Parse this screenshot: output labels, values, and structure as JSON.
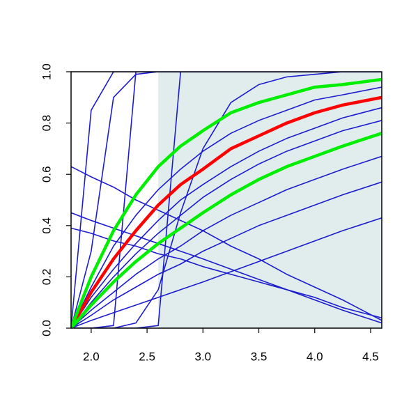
{
  "chart_data": {
    "type": "line",
    "x": [
      1.82,
      2.0,
      2.2,
      2.4,
      2.6,
      2.8,
      3.0,
      3.25,
      3.5,
      3.75,
      4.0,
      4.25,
      4.6
    ],
    "xlim": [
      1.82,
      4.6
    ],
    "ylim": [
      0,
      1
    ],
    "xticks": [
      {
        "value": 2,
        "label": "2.0"
      },
      2.5,
      {
        "value": 3,
        "label": "3.0"
      },
      3.5,
      {
        "value": 4,
        "label": "4.0"
      },
      4.5
    ],
    "yticks": [
      {
        "value": 0,
        "label": "0.0"
      },
      0.2,
      0.4,
      0.6,
      0.8,
      {
        "value": 1,
        "label": "1.0"
      }
    ],
    "shade_xlim": [
      2.6,
      4.6
    ],
    "shade_color": "#e1ecec",
    "series": [
      {
        "color": "#1c1ccf",
        "width": 1.6,
        "values": [
          0,
          0.05,
          0.11,
          0.16,
          0.21,
          0.25,
          0.3,
          0.35,
          0.4,
          0.44,
          0.48,
          0.52,
          0.57
        ]
      },
      {
        "color": "#1c1ccf",
        "width": 1.6,
        "values": [
          0,
          0.07,
          0.14,
          0.21,
          0.27,
          0.32,
          0.38,
          0.44,
          0.49,
          0.54,
          0.58,
          0.62,
          0.67
        ]
      },
      {
        "color": "#1c1ccf",
        "width": 1.6,
        "values": [
          0,
          0.1,
          0.2,
          0.29,
          0.37,
          0.44,
          0.51,
          0.58,
          0.64,
          0.69,
          0.73,
          0.77,
          0.81
        ]
      },
      {
        "color": "#1c1ccf",
        "width": 1.6,
        "values": [
          0,
          0.12,
          0.23,
          0.33,
          0.42,
          0.5,
          0.56,
          0.63,
          0.69,
          0.74,
          0.78,
          0.82,
          0.86
        ]
      },
      {
        "color": "#1c1ccf",
        "width": 1.6,
        "values": [
          0,
          0.16,
          0.32,
          0.44,
          0.54,
          0.62,
          0.69,
          0.76,
          0.81,
          0.85,
          0.89,
          0.91,
          0.94
        ]
      },
      {
        "color": "#1c1ccf",
        "width": 1.6,
        "values": [
          0,
          0.03,
          0.06,
          0.09,
          0.12,
          0.15,
          0.18,
          0.22,
          0.26,
          0.3,
          0.34,
          0.38,
          0.43
        ]
      },
      {
        "color": "#1c1ccf",
        "width": 1.6,
        "values": [
          0,
          0.85,
          1,
          1,
          1,
          1,
          1,
          1,
          1,
          1,
          1,
          1,
          1
        ]
      },
      {
        "color": "#1c1ccf",
        "width": 1.6,
        "values": [
          0,
          0.3,
          0.9,
          0.99,
          1,
          1,
          1,
          1,
          1,
          1,
          1,
          1,
          1
        ]
      },
      {
        "color": "#1c1ccf",
        "width": 1.6,
        "values": [
          0,
          0,
          0.01,
          1,
          1,
          1,
          1,
          1,
          1,
          1,
          1,
          1,
          1
        ]
      },
      {
        "color": "#1c1ccf",
        "width": 1.6,
        "values": [
          0,
          0,
          0,
          0,
          0.01,
          1,
          1,
          1,
          1,
          1,
          1,
          1,
          1
        ]
      },
      {
        "color": "#1c1ccf",
        "width": 1.6,
        "values": [
          0,
          0,
          0,
          0.02,
          0.15,
          0.45,
          0.7,
          0.88,
          0.95,
          0.98,
          0.99,
          1,
          1
        ]
      },
      {
        "color": "#1c1ccf",
        "width": 1.6,
        "values": [
          0.63,
          0.59,
          0.55,
          0.5,
          0.46,
          0.42,
          0.38,
          0.32,
          0.27,
          0.21,
          0.16,
          0.11,
          0.03
        ]
      },
      {
        "color": "#1c1ccf",
        "width": 1.6,
        "values": [
          0.45,
          0.42,
          0.39,
          0.36,
          0.33,
          0.3,
          0.27,
          0.23,
          0.19,
          0.15,
          0.11,
          0.07,
          0.02
        ]
      },
      {
        "color": "#1c1ccf",
        "width": 1.6,
        "values": [
          0.39,
          0.37,
          0.34,
          0.32,
          0.29,
          0.27,
          0.24,
          0.21,
          0.18,
          0.15,
          0.12,
          0.08,
          0.04
        ]
      },
      {
        "color": "#ff0000",
        "width": 4.5,
        "values": [
          0,
          0.14,
          0.27,
          0.38,
          0.48,
          0.56,
          0.62,
          0.7,
          0.75,
          0.8,
          0.84,
          0.87,
          0.9
        ]
      },
      {
        "color": "#00ee00",
        "width": 4.5,
        "values": [
          0,
          0.2,
          0.38,
          0.52,
          0.63,
          0.71,
          0.77,
          0.84,
          0.88,
          0.91,
          0.94,
          0.95,
          0.97
        ]
      },
      {
        "color": "#00ee00",
        "width": 4.5,
        "values": [
          0,
          0.09,
          0.18,
          0.26,
          0.33,
          0.39,
          0.45,
          0.52,
          0.58,
          0.63,
          0.67,
          0.71,
          0.76
        ]
      }
    ]
  }
}
